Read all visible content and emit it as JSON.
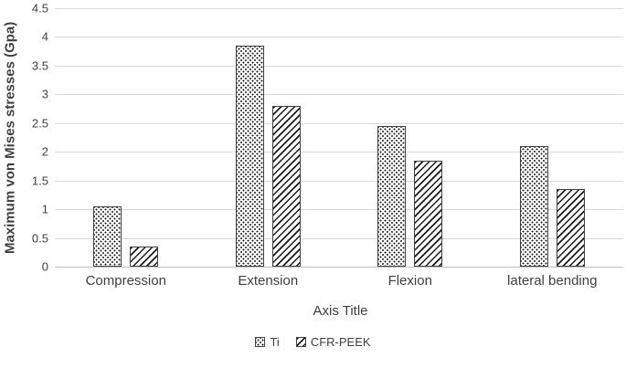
{
  "chart_data": {
    "type": "bar",
    "title": "",
    "categories": [
      "Compression",
      "Extension",
      "Flexion",
      "lateral bending"
    ],
    "series": [
      {
        "name": "Ti",
        "pattern": "dots",
        "values": [
          1.05,
          3.85,
          2.45,
          2.1
        ]
      },
      {
        "name": "CFR-PEEK",
        "pattern": "diagonal-hatch",
        "values": [
          0.35,
          2.8,
          1.85,
          1.35
        ]
      }
    ],
    "xlabel": "Axis Title",
    "ylabel": "Maximum von Mises stresses (Gpa)",
    "ylim": [
      0,
      4.5
    ],
    "ytick_step": 0.5,
    "yticks": [
      "4.5",
      "4",
      "3.5",
      "3",
      "2.5",
      "2",
      "1.5",
      "1",
      "0.5",
      "0"
    ],
    "grid": "horizontal",
    "legend_position": "bottom",
    "colors": {
      "gridline": "#d9d9d9",
      "axis_line": "#bfbfbf",
      "bar_outline": "#404040",
      "pattern_ink": "#1a1a1a",
      "text": "#404040",
      "background": "#ffffff"
    }
  }
}
